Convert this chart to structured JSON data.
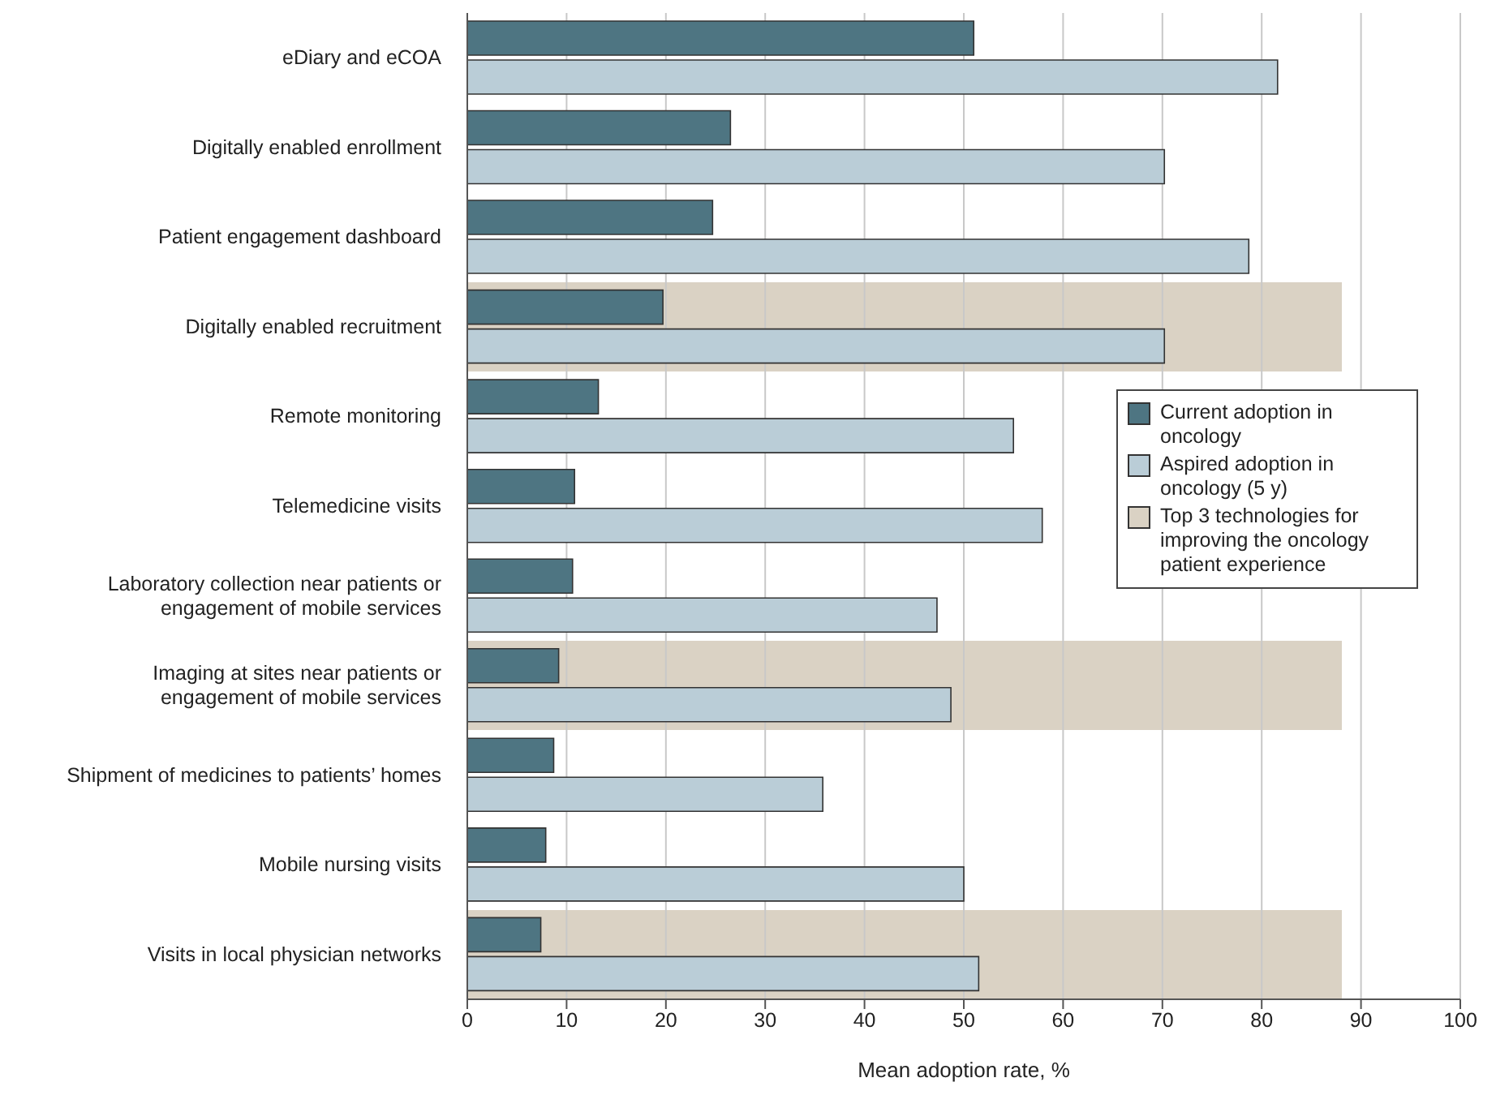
{
  "chart_data": {
    "type": "bar",
    "orientation": "horizontal",
    "xlabel": "Mean adoption rate, %",
    "categories": [
      "eDiary and eCOA",
      "Digitally enabled enrollment",
      "Patient engagement dashboard",
      "Digitally enabled recruitment",
      "Remote monitoring",
      "Telemedicine visits",
      "Laboratory collection near patients or engagement of mobile services",
      "Imaging at sites near patients or engagement of mobile services",
      "Shipment of medicines to patients’ homes",
      "Mobile nursing visits",
      "Visits in local physician networks"
    ],
    "series": [
      {
        "name": "Current adoption in oncology",
        "color": "#4e7582",
        "values": [
          51,
          26.5,
          24.7,
          19.7,
          13.2,
          10.8,
          10.6,
          9.2,
          8.7,
          7.9,
          7.4
        ]
      },
      {
        "name": "Aspired adoption in oncology (5 y)",
        "color": "#bacdd7",
        "values": [
          81.6,
          70.2,
          78.7,
          70.2,
          55,
          57.9,
          47.3,
          48.7,
          35.8,
          50,
          51.5
        ]
      }
    ],
    "bands": [
      {
        "axis": "y",
        "from": "Digitally enabled recruitment",
        "to": "Digitally enabled recruitment",
        "label": "Top 3 technologies for improving the oncology patient experience",
        "color": "#dad2c4"
      },
      {
        "axis": "y",
        "from": "Imaging at sites near patients or engagement of mobile services",
        "to": "Imaging at sites near patients or engagement of mobile services",
        "color": "#dad2c4"
      },
      {
        "axis": "y",
        "from": "Visits in local physician networks",
        "to": "Visits in local physician networks",
        "color": "#dad2c4"
      }
    ],
    "xlim": [
      0,
      100
    ],
    "xticks": [
      0,
      10,
      20,
      30,
      40,
      50,
      60,
      70,
      80,
      90,
      100
    ],
    "grid": "x",
    "legend": "right"
  }
}
